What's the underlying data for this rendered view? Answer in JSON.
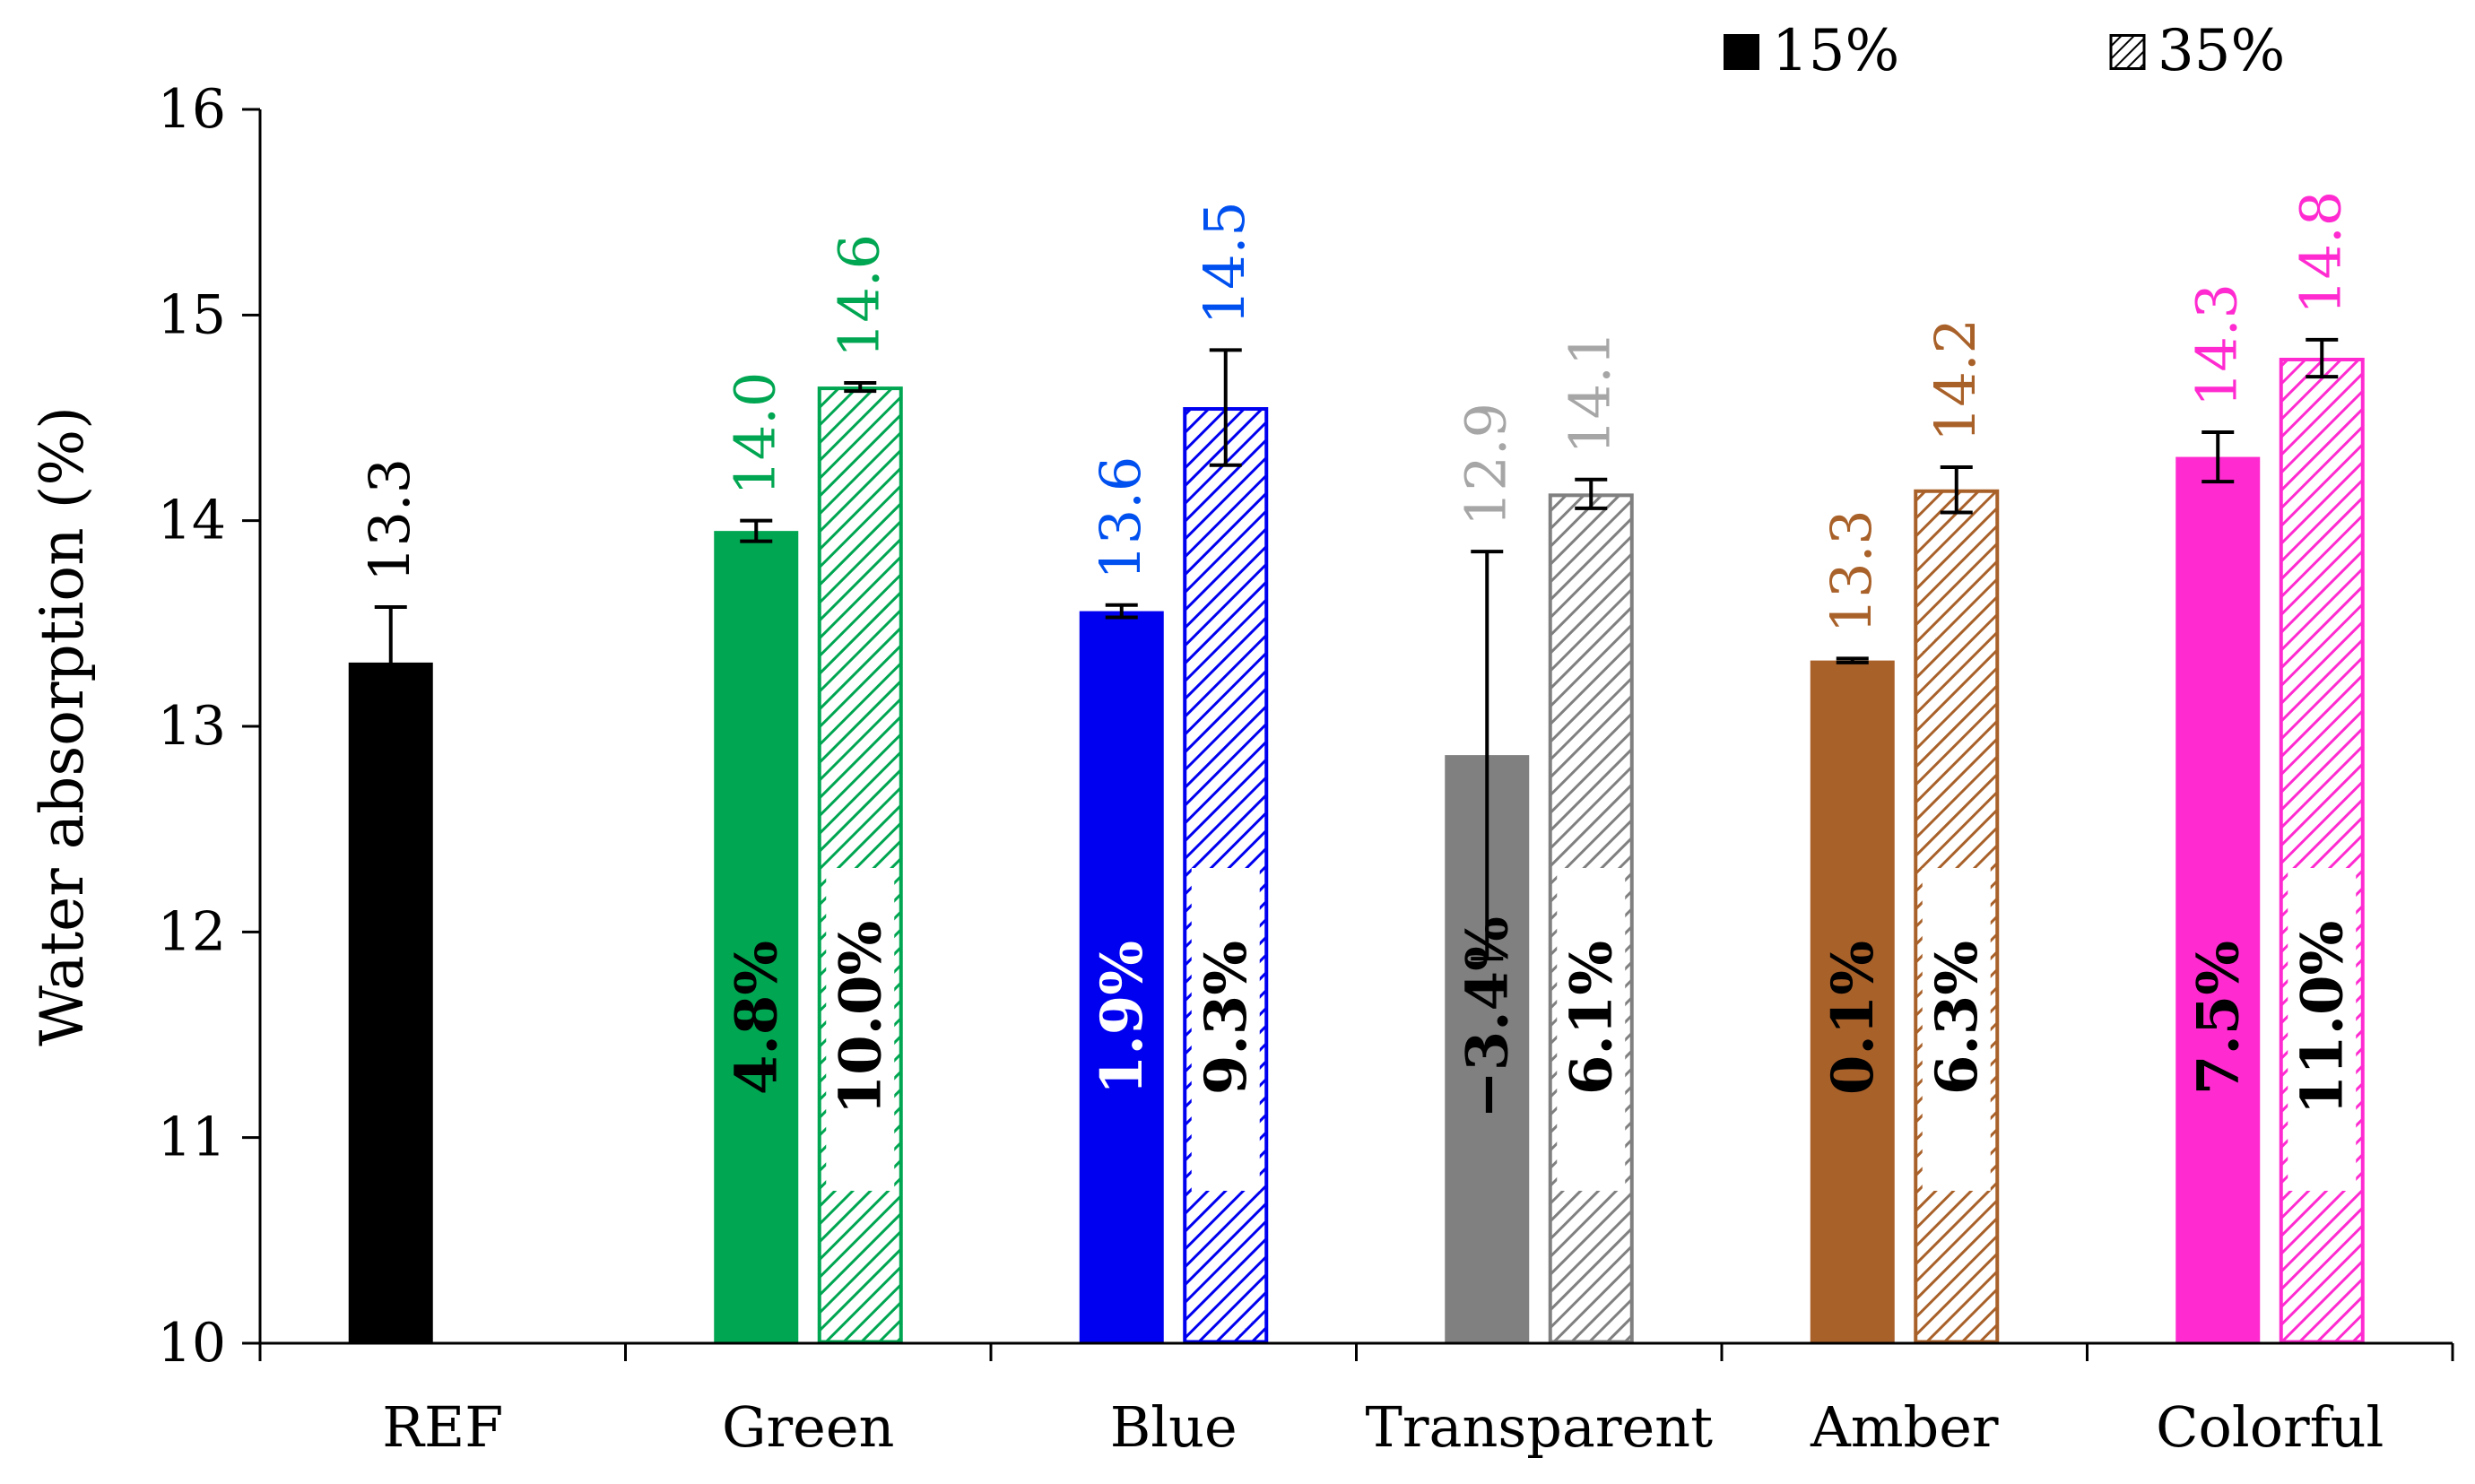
{
  "chart_data": {
    "type": "bar",
    "title": "",
    "xlabel": "",
    "ylabel": "Water absorption (%)",
    "ylim": [
      10,
      16
    ],
    "yticks": [
      "10",
      "11",
      "12",
      "13",
      "14",
      "15",
      "16"
    ],
    "categories": [
      "REF",
      "Green",
      "Blue",
      "Transparent",
      "Amber",
      "Colorful"
    ],
    "category_colors": [
      "#000000",
      "#00a651",
      "#0000f0",
      "#808080",
      "#a9612a",
      "#ff2bd0"
    ],
    "value_label_colors": [
      "#000000",
      "#00a651",
      "#0050f0",
      "#a6a6a6",
      "#a9612a",
      "#ff2bd0"
    ],
    "legend": {
      "position": "top-right",
      "entries": [
        "15%",
        "35%"
      ]
    },
    "series": [
      {
        "name": "15%",
        "pattern": "solid",
        "values": [
          13.31,
          13.95,
          13.56,
          12.86,
          13.32,
          14.31
        ],
        "errors": [
          0.27,
          0.05,
          0.03,
          0.99,
          0.01,
          0.12
        ],
        "value_labels": [
          "13.3",
          "14.0",
          "13.6",
          "12.9",
          "13.3",
          "14.3"
        ],
        "pct_labels": [
          null,
          "4.8%",
          "1.9%",
          "−3.4%",
          "0.1%",
          "7.5%"
        ],
        "pct_label_colors": [
          null,
          "#000000",
          "#ffffff",
          "#000000",
          "#000000",
          "#000000"
        ]
      },
      {
        "name": "35%",
        "pattern": "hatched",
        "values": [
          null,
          14.65,
          14.55,
          14.13,
          14.15,
          14.79
        ],
        "errors": [
          null,
          0.02,
          0.28,
          0.07,
          0.11,
          0.09
        ],
        "value_labels": [
          null,
          "14.6",
          "14.5",
          "14.1",
          "14.2",
          "14.8"
        ],
        "pct_labels": [
          null,
          "10.0%",
          "9.3%",
          "6.1%",
          "6.3%",
          "11.0%"
        ],
        "pct_label_colors": [
          null,
          "#000000",
          "#000000",
          "#000000",
          "#000000",
          "#000000"
        ]
      }
    ]
  }
}
